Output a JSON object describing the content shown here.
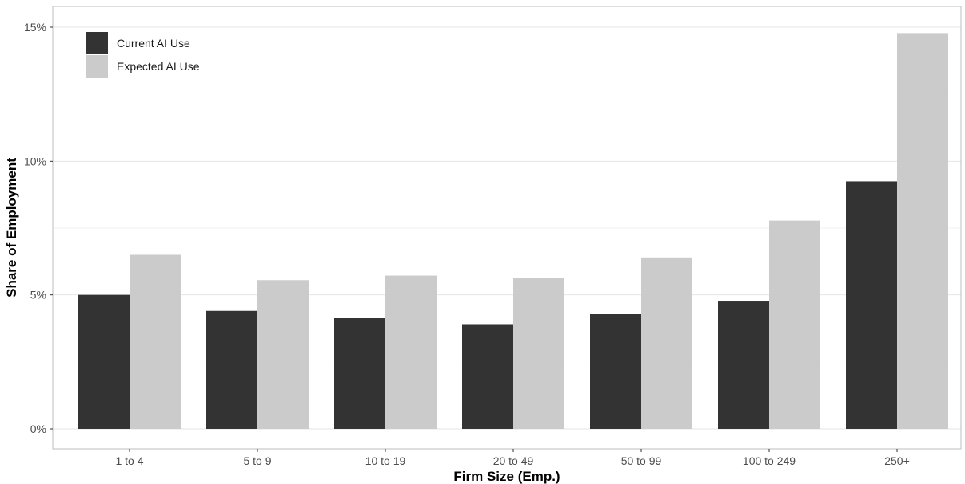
{
  "chart_data": {
    "type": "bar",
    "title": "",
    "xlabel": "Firm Size (Emp.)",
    "ylabel": "Share of Employment",
    "categories": [
      "1 to 4",
      "5 to 9",
      "10 to 19",
      "20 to 49",
      "50 to 99",
      "100 to 249",
      "250+"
    ],
    "series": [
      {
        "name": "Current AI Use",
        "color": "#333333",
        "values": [
          5.0,
          4.4,
          4.15,
          3.9,
          4.28,
          4.78,
          9.25
        ]
      },
      {
        "name": "Expected AI Use",
        "color": "#cbcbcb",
        "values": [
          6.5,
          5.55,
          5.72,
          5.62,
          6.4,
          7.78,
          14.78
        ]
      }
    ],
    "ylim": [
      0,
      15.8
    ],
    "yticks": [
      0,
      5,
      10,
      15
    ],
    "ytick_labels": [
      "0%",
      "5%",
      "10%",
      "15%"
    ],
    "grid": true,
    "legend": "top-left",
    "colors": {
      "major_grid": "#e6e6e6",
      "minor_grid": "#f2f2f2",
      "panel_border": "#bdbdbd"
    }
  }
}
